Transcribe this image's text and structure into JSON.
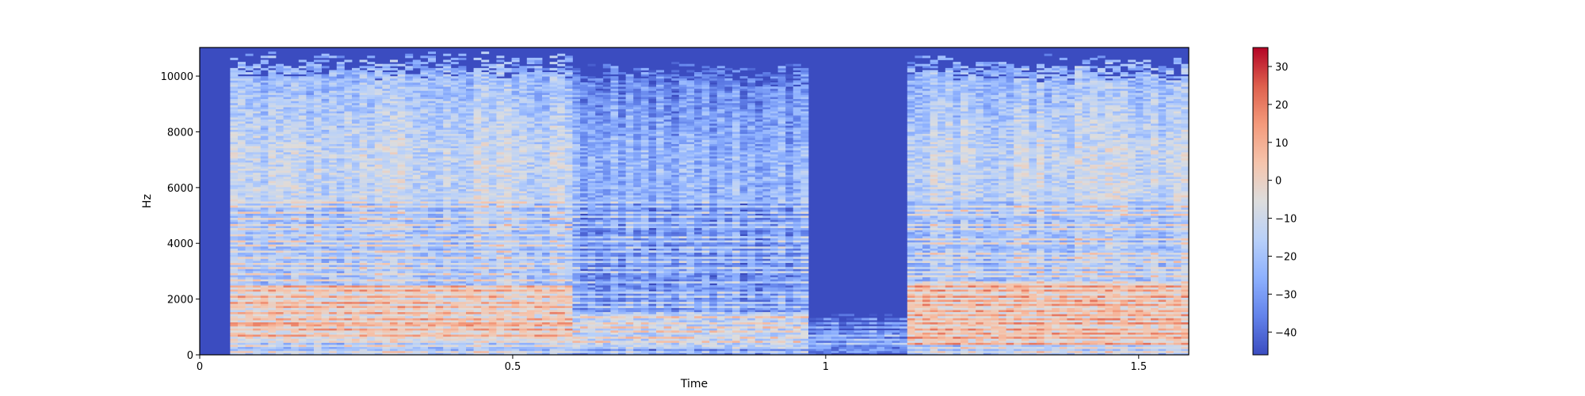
{
  "chart_data": {
    "type": "heatmap",
    "title": "",
    "xlabel": "Time",
    "ylabel": "Hz",
    "xlim": [
      0,
      1.58
    ],
    "ylim": [
      0,
      11025
    ],
    "xticks": [
      {
        "value": 0,
        "label": "0"
      },
      {
        "value": 0.5,
        "label": "0.5"
      },
      {
        "value": 1,
        "label": "1"
      },
      {
        "value": 1.5,
        "label": "1.5"
      }
    ],
    "yticks": [
      {
        "value": 0,
        "label": "0"
      },
      {
        "value": 2000,
        "label": "2000"
      },
      {
        "value": 4000,
        "label": "4000"
      },
      {
        "value": 6000,
        "label": "6000"
      },
      {
        "value": 8000,
        "label": "8000"
      },
      {
        "value": 10000,
        "label": "10000"
      }
    ],
    "colormap": [
      "#3b4cc0",
      "#6282ea",
      "#8db0fe",
      "#b8d0f9",
      "#dddddd",
      "#f5c4ac",
      "#f49a7b",
      "#de604d",
      "#b40426"
    ],
    "colorbar": {
      "vmin": -46,
      "vmax": 35,
      "ticks": [
        {
          "value": 30,
          "label": "30"
        },
        {
          "value": 20,
          "label": "20"
        },
        {
          "value": 10,
          "label": "10"
        },
        {
          "value": 0,
          "label": "0"
        },
        {
          "value": -10,
          "label": "−10"
        },
        {
          "value": -20,
          "label": "−20"
        },
        {
          "value": -30,
          "label": "−30"
        },
        {
          "value": -40,
          "label": "−40"
        }
      ]
    },
    "segments": [
      {
        "t0": 0.05,
        "t1": 0.6,
        "fmax": 10600,
        "f0": 200,
        "level": -12,
        "lowband": [
          500,
          2500
        ],
        "lowlevel": 10
      },
      {
        "t0": 0.6,
        "t1": 0.97,
        "fmax": 10300,
        "f0": 180,
        "level": -24,
        "lowband": [
          300,
          1500
        ],
        "lowlevel": 0
      },
      {
        "t0": 0.97,
        "t1": 1.13,
        "fmax": 1500,
        "f0": 150,
        "level": -38,
        "lowband": [
          100,
          800
        ],
        "lowlevel": -20
      },
      {
        "t0": 1.13,
        "t1": 1.58,
        "fmax": 10500,
        "f0": 170,
        "level": -12,
        "lowband": [
          400,
          2600
        ],
        "lowlevel": 12
      }
    ]
  }
}
